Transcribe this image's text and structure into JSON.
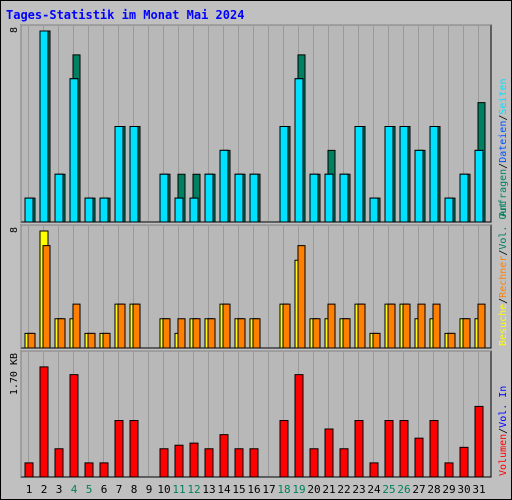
{
  "title": "Tages-Statistik im Monat Mai 2024",
  "colors": {
    "frame_bg": "#c0c0c0",
    "plot_bg": "#b8b8b8",
    "title": "#0000ff",
    "hits": "#008060",
    "files": "#00e0ff",
    "pages": "#00e0ff",
    "visits": "#ffff00",
    "sites": "#ff8000",
    "kbytes": "#ff0000",
    "weekend_label": "#00805c",
    "in_label": "#0000ff",
    "out_label": "#008060"
  },
  "legend": {
    "top": [
      "Anfragen",
      "/",
      "Dateien",
      "/",
      "Seiten"
    ],
    "middle": [
      "Besuche",
      "/",
      "Rechner",
      "/",
      "Vol. Out"
    ],
    "bottom": [
      "Volumen",
      "/",
      "Vol. In"
    ]
  },
  "chart_data": [
    {
      "type": "bar",
      "panel": "top",
      "ymax_label": "8",
      "ylim": [
        0,
        8
      ],
      "categories": [
        "1",
        "2",
        "3",
        "4",
        "5",
        "6",
        "7",
        "8",
        "9",
        "10",
        "11",
        "12",
        "13",
        "14",
        "15",
        "16",
        "17",
        "18",
        "19",
        "20",
        "21",
        "22",
        "23",
        "24",
        "25",
        "26",
        "27",
        "28",
        "29",
        "30",
        "31"
      ],
      "weekend_days": [
        "4",
        "5",
        "11",
        "12",
        "18",
        "19",
        "25",
        "26"
      ],
      "series": [
        {
          "name": "Anfragen",
          "values": [
            1,
            8,
            2,
            7,
            1,
            1,
            4,
            4,
            0,
            2,
            2,
            2,
            2,
            3,
            2,
            2,
            0,
            4,
            7,
            2,
            3,
            2,
            4,
            1,
            4,
            4,
            3,
            4,
            1,
            2,
            5
          ]
        },
        {
          "name": "Dateien",
          "values": [
            1,
            8,
            2,
            6,
            1,
            1,
            4,
            4,
            0,
            2,
            1,
            1,
            2,
            3,
            2,
            2,
            0,
            4,
            6,
            2,
            2,
            2,
            4,
            1,
            4,
            4,
            3,
            4,
            1,
            2,
            3
          ]
        },
        {
          "name": "Seiten",
          "values": [
            1,
            8,
            2,
            6,
            1,
            1,
            4,
            4,
            0,
            2,
            1,
            1,
            2,
            3,
            2,
            2,
            0,
            4,
            6,
            2,
            2,
            2,
            4,
            1,
            4,
            4,
            3,
            4,
            1,
            2,
            3
          ]
        }
      ]
    },
    {
      "type": "bar",
      "panel": "middle",
      "ymax_label": "8",
      "ylim": [
        0,
        8
      ],
      "categories": [
        "1",
        "2",
        "3",
        "4",
        "5",
        "6",
        "7",
        "8",
        "9",
        "10",
        "11",
        "12",
        "13",
        "14",
        "15",
        "16",
        "17",
        "18",
        "19",
        "20",
        "21",
        "22",
        "23",
        "24",
        "25",
        "26",
        "27",
        "28",
        "29",
        "30",
        "31"
      ],
      "series": [
        {
          "name": "Besuche",
          "values": [
            1,
            8,
            2,
            2,
            1,
            1,
            3,
            3,
            0,
            2,
            1,
            2,
            2,
            3,
            2,
            2,
            0,
            3,
            6,
            2,
            2,
            2,
            3,
            1,
            3,
            3,
            2,
            2,
            1,
            2,
            2
          ]
        },
        {
          "name": "Rechner",
          "values": [
            1,
            7,
            2,
            3,
            1,
            1,
            3,
            3,
            0,
            2,
            2,
            2,
            2,
            3,
            2,
            2,
            0,
            3,
            7,
            2,
            3,
            2,
            3,
            1,
            3,
            3,
            3,
            3,
            1,
            2,
            3
          ]
        }
      ]
    },
    {
      "type": "bar",
      "panel": "bottom",
      "ymax_label": "1.70 KB",
      "ylim": [
        0,
        1.7
      ],
      "categories": [
        "1",
        "2",
        "3",
        "4",
        "5",
        "6",
        "7",
        "8",
        "9",
        "10",
        "11",
        "12",
        "13",
        "14",
        "15",
        "16",
        "17",
        "18",
        "19",
        "20",
        "21",
        "22",
        "23",
        "24",
        "25",
        "26",
        "27",
        "28",
        "29",
        "30",
        "31"
      ],
      "series": [
        {
          "name": "Volumen",
          "values": [
            0.2,
            1.56,
            0.4,
            1.45,
            0.2,
            0.2,
            0.8,
            0.8,
            0,
            0.4,
            0.45,
            0.48,
            0.4,
            0.6,
            0.4,
            0.4,
            0,
            0.8,
            1.45,
            0.4,
            0.68,
            0.4,
            0.8,
            0.2,
            0.8,
            0.8,
            0.55,
            0.8,
            0.2,
            0.42,
            1.0
          ]
        }
      ]
    }
  ]
}
